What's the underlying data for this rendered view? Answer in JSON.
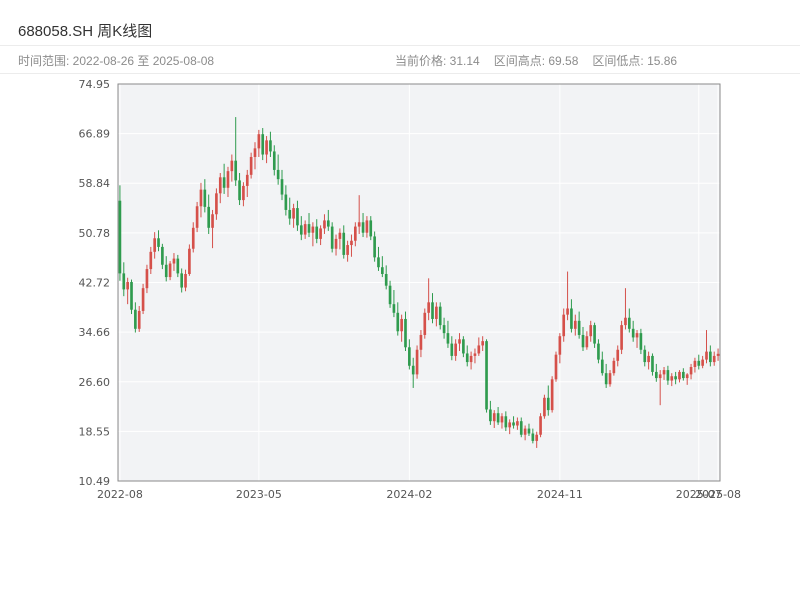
{
  "header": {
    "title": "688058.SH 周K线图"
  },
  "subheader": {
    "range_label": "时间范围: 2022-08-26 至 2025-08-08",
    "price_label": "当前价格: 31.14",
    "high_label": "区间高点: 69.58",
    "low_label": "区间低点: 15.86"
  },
  "chart_data": {
    "type": "candlestick",
    "title": "688058.SH 周K线图",
    "interval": "weekly",
    "date_range": [
      "2022-08-26",
      "2025-08-08"
    ],
    "current_price": 31.14,
    "range_high": 69.58,
    "range_low": 15.86,
    "ylim": [
      10.49,
      74.95
    ],
    "yticks": [
      74.95,
      66.89,
      58.84,
      50.78,
      42.72,
      34.66,
      26.6,
      18.55,
      10.49
    ],
    "xticks": [
      {
        "index": 0,
        "label": "2022-08"
      },
      {
        "index": 36,
        "label": "2023-05"
      },
      {
        "index": 75,
        "label": "2024-02"
      },
      {
        "index": 114,
        "label": "2024-11"
      },
      {
        "index": 150,
        "label": "2025-07"
      },
      {
        "index": 155,
        "label": "2025-08"
      }
    ],
    "grid": true,
    "plot_bg": "#f2f3f5",
    "grid_color": "#ffffff",
    "border_color": "#8a8a8a",
    "up_color": "#d5504a",
    "down_color": "#2f9b4e",
    "candles": [
      [
        56.0,
        58.5,
        43.0,
        44.2
      ],
      [
        44.2,
        46.0,
        40.5,
        41.6
      ],
      [
        41.6,
        43.5,
        39.2,
        42.8
      ],
      [
        42.8,
        43.2,
        37.6,
        38.3
      ],
      [
        38.3,
        39.5,
        34.6,
        35.2
      ],
      [
        35.2,
        38.9,
        34.7,
        38.1
      ],
      [
        38.1,
        42.5,
        37.6,
        41.8
      ],
      [
        41.8,
        45.6,
        41.0,
        44.9
      ],
      [
        44.9,
        48.5,
        44.1,
        47.7
      ],
      [
        47.7,
        50.9,
        46.6,
        49.9
      ],
      [
        49.9,
        51.2,
        47.8,
        48.5
      ],
      [
        48.5,
        49.0,
        44.9,
        45.6
      ],
      [
        45.6,
        47.0,
        42.9,
        43.6
      ],
      [
        43.6,
        46.2,
        43.1,
        45.8
      ],
      [
        45.8,
        47.5,
        44.6,
        46.6
      ],
      [
        46.6,
        47.2,
        43.6,
        44.2
      ],
      [
        44.2,
        45.0,
        41.1,
        41.9
      ],
      [
        41.9,
        44.8,
        41.3,
        44.1
      ],
      [
        44.1,
        48.9,
        43.8,
        48.2
      ],
      [
        48.2,
        52.5,
        47.6,
        51.6
      ],
      [
        51.6,
        55.8,
        50.9,
        55.1
      ],
      [
        55.1,
        58.9,
        53.3,
        57.8
      ],
      [
        57.8,
        59.5,
        54.1,
        55.0
      ],
      [
        55.0,
        57.0,
        50.6,
        51.6
      ],
      [
        51.6,
        54.5,
        48.3,
        53.8
      ],
      [
        53.8,
        58.0,
        52.9,
        57.2
      ],
      [
        57.2,
        60.5,
        55.6,
        59.8
      ],
      [
        59.8,
        62.0,
        57.1,
        58.1
      ],
      [
        58.1,
        61.5,
        56.6,
        60.8
      ],
      [
        60.8,
        63.5,
        59.1,
        62.5
      ],
      [
        62.5,
        69.58,
        58.4,
        59.3
      ],
      [
        59.3,
        60.5,
        55.3,
        56.1
      ],
      [
        56.1,
        59.0,
        55.1,
        58.4
      ],
      [
        58.4,
        61.0,
        56.6,
        60.2
      ],
      [
        60.2,
        63.8,
        59.6,
        63.1
      ],
      [
        63.1,
        65.5,
        61.1,
        64.5
      ],
      [
        64.5,
        67.5,
        63.1,
        66.8
      ],
      [
        66.8,
        67.8,
        62.6,
        63.5
      ],
      [
        63.5,
        66.5,
        62.1,
        65.8
      ],
      [
        65.8,
        67.2,
        63.1,
        64.0
      ],
      [
        64.0,
        65.0,
        60.1,
        61.0
      ],
      [
        61.0,
        63.5,
        58.6,
        59.5
      ],
      [
        59.5,
        61.0,
        56.1,
        57.0
      ],
      [
        57.0,
        58.5,
        53.6,
        54.5
      ],
      [
        54.5,
        56.5,
        52.1,
        53.1
      ],
      [
        53.1,
        55.5,
        51.6,
        54.8
      ],
      [
        54.8,
        56.0,
        51.1,
        52.0
      ],
      [
        52.0,
        53.5,
        49.6,
        50.5
      ],
      [
        50.5,
        52.8,
        49.8,
        52.2
      ],
      [
        52.2,
        54.0,
        50.1,
        50.8
      ],
      [
        50.8,
        52.5,
        48.6,
        51.8
      ],
      [
        51.8,
        53.0,
        49.1,
        49.8
      ],
      [
        49.8,
        52.0,
        48.8,
        51.5
      ],
      [
        51.5,
        53.8,
        50.6,
        52.8
      ],
      [
        52.8,
        54.5,
        51.1,
        51.8
      ],
      [
        51.8,
        52.5,
        47.6,
        48.2
      ],
      [
        48.2,
        50.5,
        47.1,
        49.8
      ],
      [
        49.8,
        51.5,
        48.1,
        50.8
      ],
      [
        50.8,
        52.0,
        46.6,
        47.2
      ],
      [
        47.2,
        49.5,
        46.1,
        48.8
      ],
      [
        48.8,
        50.5,
        46.9,
        49.5
      ],
      [
        49.5,
        52.5,
        48.6,
        51.8
      ],
      [
        51.8,
        56.9,
        50.6,
        52.5
      ],
      [
        52.5,
        54.0,
        50.1,
        50.8
      ],
      [
        50.8,
        53.5,
        50.0,
        52.8
      ],
      [
        52.8,
        53.5,
        49.6,
        50.2
      ],
      [
        50.2,
        51.0,
        46.1,
        46.8
      ],
      [
        46.8,
        48.5,
        44.6,
        45.2
      ],
      [
        45.2,
        47.0,
        43.6,
        44.1
      ],
      [
        44.1,
        45.5,
        41.6,
        42.2
      ],
      [
        42.2,
        43.0,
        38.6,
        39.2
      ],
      [
        39.2,
        41.5,
        37.1,
        37.8
      ],
      [
        37.8,
        39.5,
        34.1,
        34.8
      ],
      [
        34.8,
        37.5,
        33.1,
        36.8
      ],
      [
        36.8,
        38.0,
        31.6,
        32.2
      ],
      [
        32.2,
        33.5,
        28.6,
        29.2
      ],
      [
        29.2,
        30.5,
        25.6,
        27.8
      ],
      [
        27.8,
        32.5,
        27.1,
        31.8
      ],
      [
        31.8,
        35.0,
        30.6,
        34.2
      ],
      [
        34.2,
        38.5,
        33.6,
        37.8
      ],
      [
        37.8,
        43.4,
        36.6,
        39.5
      ],
      [
        39.5,
        41.0,
        36.1,
        36.8
      ],
      [
        36.8,
        39.5,
        35.6,
        38.8
      ],
      [
        38.8,
        39.5,
        35.1,
        35.8
      ],
      [
        35.8,
        37.0,
        33.6,
        34.5
      ],
      [
        34.5,
        36.5,
        32.1,
        32.8
      ],
      [
        32.8,
        34.0,
        30.1,
        30.8
      ],
      [
        30.8,
        33.5,
        30.0,
        32.8
      ],
      [
        32.8,
        34.5,
        31.6,
        33.5
      ],
      [
        33.5,
        34.0,
        30.6,
        31.2
      ],
      [
        31.2,
        32.5,
        29.1,
        29.8
      ],
      [
        29.8,
        31.5,
        28.6,
        30.8
      ],
      [
        30.8,
        32.0,
        29.6,
        31.2
      ],
      [
        31.2,
        33.8,
        30.8,
        32.5
      ],
      [
        32.5,
        34.0,
        31.6,
        33.2
      ],
      [
        33.2,
        33.5,
        21.6,
        22.1
      ],
      [
        22.1,
        23.5,
        19.6,
        20.2
      ],
      [
        20.2,
        22.0,
        19.1,
        21.5
      ],
      [
        21.5,
        22.5,
        19.6,
        20.0
      ],
      [
        20.0,
        21.5,
        19.0,
        21.0
      ],
      [
        21.0,
        21.8,
        18.6,
        19.2
      ],
      [
        19.2,
        20.5,
        18.1,
        20.0
      ],
      [
        20.0,
        21.0,
        19.0,
        19.5
      ],
      [
        19.5,
        20.8,
        18.8,
        20.2
      ],
      [
        20.2,
        20.8,
        17.6,
        18.0
      ],
      [
        18.0,
        19.5,
        17.1,
        19.0
      ],
      [
        19.0,
        19.8,
        17.8,
        18.2
      ],
      [
        18.2,
        19.0,
        16.6,
        17.0
      ],
      [
        17.0,
        18.5,
        15.86,
        18.0
      ],
      [
        18.0,
        21.5,
        17.6,
        21.0
      ],
      [
        21.0,
        24.5,
        20.6,
        24.0
      ],
      [
        24.0,
        26.0,
        21.1,
        22.0
      ],
      [
        22.0,
        27.5,
        21.6,
        27.0
      ],
      [
        27.0,
        31.5,
        26.6,
        31.0
      ],
      [
        31.0,
        34.5,
        29.6,
        34.0
      ],
      [
        34.0,
        38.5,
        33.1,
        37.5
      ],
      [
        37.5,
        44.5,
        36.6,
        38.5
      ],
      [
        38.5,
        40.0,
        34.6,
        35.2
      ],
      [
        35.2,
        37.5,
        34.1,
        36.5
      ],
      [
        36.5,
        38.0,
        33.6,
        34.2
      ],
      [
        34.2,
        35.5,
        31.6,
        32.2
      ],
      [
        32.2,
        34.8,
        31.8,
        34.0
      ],
      [
        34.0,
        36.5,
        33.1,
        35.8
      ],
      [
        35.8,
        36.2,
        32.1,
        32.8
      ],
      [
        32.8,
        33.5,
        29.6,
        30.2
      ],
      [
        30.2,
        31.5,
        27.6,
        28.0
      ],
      [
        28.0,
        29.5,
        25.6,
        26.2
      ],
      [
        26.2,
        28.5,
        25.8,
        28.0
      ],
      [
        28.0,
        30.5,
        27.6,
        30.0
      ],
      [
        30.0,
        32.5,
        29.1,
        31.8
      ],
      [
        31.8,
        36.5,
        31.1,
        35.8
      ],
      [
        35.8,
        41.8,
        35.1,
        37.0
      ],
      [
        37.0,
        38.5,
        34.6,
        35.2
      ],
      [
        35.2,
        36.5,
        33.1,
        33.8
      ],
      [
        33.8,
        35.0,
        32.1,
        34.5
      ],
      [
        34.5,
        35.2,
        31.1,
        31.8
      ],
      [
        31.8,
        32.5,
        29.1,
        29.8
      ],
      [
        29.8,
        31.5,
        28.6,
        30.8
      ],
      [
        30.8,
        31.2,
        27.6,
        28.2
      ],
      [
        28.2,
        29.5,
        26.6,
        27.2
      ],
      [
        27.2,
        28.5,
        22.8,
        27.8
      ],
      [
        27.8,
        29.0,
        26.9,
        28.5
      ],
      [
        28.5,
        29.2,
        26.1,
        26.8
      ],
      [
        26.8,
        28.0,
        25.9,
        27.5
      ],
      [
        27.5,
        28.2,
        26.2,
        27.0
      ],
      [
        27.0,
        28.5,
        26.5,
        28.2
      ],
      [
        28.2,
        28.8,
        26.8,
        27.2
      ],
      [
        27.2,
        28.0,
        26.1,
        27.8
      ],
      [
        27.8,
        29.5,
        27.0,
        29.0
      ],
      [
        29.0,
        30.5,
        28.1,
        30.0
      ],
      [
        30.0,
        31.0,
        28.6,
        29.2
      ],
      [
        29.2,
        30.8,
        28.8,
        30.2
      ],
      [
        30.2,
        35.0,
        29.6,
        31.5
      ],
      [
        31.5,
        32.5,
        29.1,
        29.8
      ],
      [
        29.8,
        31.5,
        29.2,
        30.8
      ],
      [
        30.8,
        32.0,
        30.0,
        31.14
      ]
    ]
  }
}
